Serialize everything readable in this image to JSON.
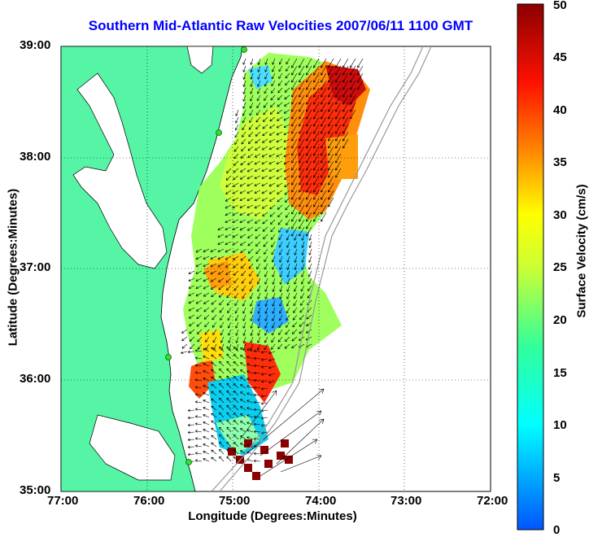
{
  "title": "Southern Mid-Atlantic Raw Velocities 2007/06/11 1100 GMT",
  "xlabel": "Longitude (Degrees:Minutes)",
  "ylabel": "Latitude (Degrees:Minutes)",
  "colorbar": {
    "label": "Surface Velocity (cm/s)",
    "ticks": [
      "0",
      "5",
      "10",
      "15",
      "20",
      "25",
      "30",
      "35",
      "40",
      "45",
      "50"
    ]
  },
  "x_ticks": [
    "77:00",
    "76:00",
    "75:00",
    "74:00",
    "73:00",
    "72:00"
  ],
  "y_ticks": [
    "39:00",
    "38:00",
    "37:00",
    "36:00",
    "35:00"
  ],
  "colors": {
    "land": "#55f5a5",
    "title": "#0000ff",
    "station": "#33dd33"
  }
}
